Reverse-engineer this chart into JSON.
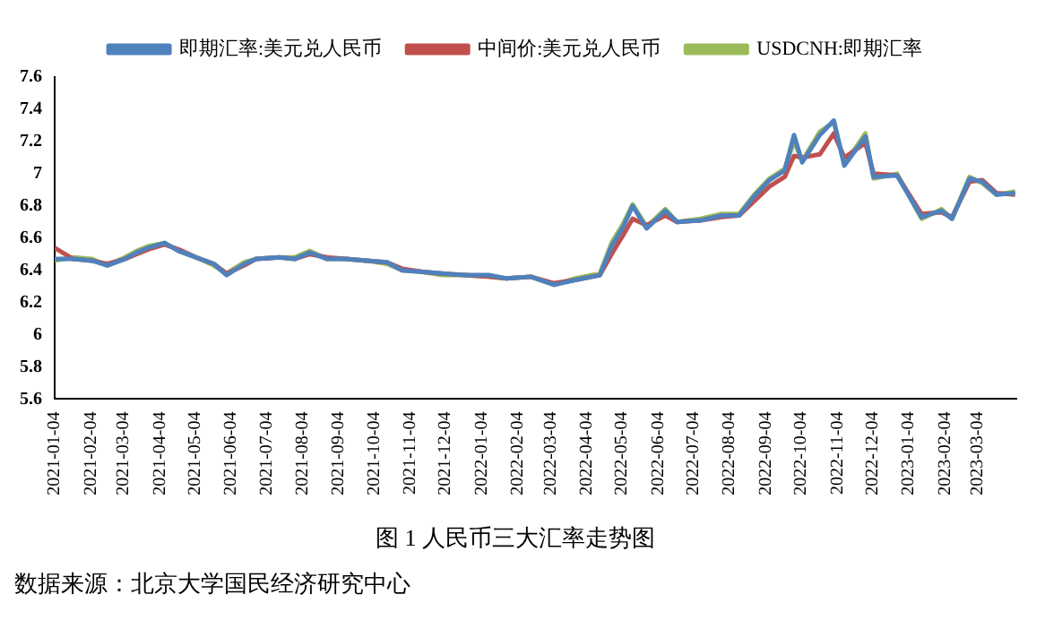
{
  "chart_data": {
    "type": "line",
    "title": "图 1 人民币三大汇率走势图",
    "annotations": [
      "数据来源：北京大学国民经济研究中心"
    ],
    "x": [
      "2021-01-04",
      "2021-01-20",
      "2021-02-05",
      "2021-02-18",
      "2021-03-05",
      "2021-03-15",
      "2021-03-25",
      "2021-04-08",
      "2021-04-20",
      "2021-05-05",
      "2021-05-20",
      "2021-05-31",
      "2021-06-15",
      "2021-06-25",
      "2021-07-15",
      "2021-07-28",
      "2021-08-10",
      "2021-08-25",
      "2021-09-10",
      "2021-09-28",
      "2021-10-15",
      "2021-10-28",
      "2021-11-15",
      "2021-12-01",
      "2021-12-20",
      "2022-01-10",
      "2022-01-25",
      "2022-02-15",
      "2022-03-07",
      "2022-03-25",
      "2022-04-15",
      "2022-04-25",
      "2022-05-05",
      "2022-05-13",
      "2022-05-25",
      "2022-06-10",
      "2022-06-20",
      "2022-07-10",
      "2022-07-28",
      "2022-08-12",
      "2022-08-25",
      "2022-09-07",
      "2022-09-20",
      "2022-09-28",
      "2022-10-05",
      "2022-10-20",
      "2022-11-01",
      "2022-11-10",
      "2022-11-28",
      "2022-12-05",
      "2022-12-25",
      "2023-01-15",
      "2023-02-01",
      "2023-02-10",
      "2023-02-25",
      "2023-03-08",
      "2023-03-20",
      "2023-04-05"
    ],
    "series": [
      {
        "name": "即期汇率:美元兑人民币",
        "color": "#4f81bd",
        "values": [
          6.47,
          6.47,
          6.46,
          6.43,
          6.47,
          6.51,
          6.54,
          6.57,
          6.52,
          6.48,
          6.44,
          6.37,
          6.44,
          6.47,
          6.48,
          6.47,
          6.51,
          6.47,
          6.47,
          6.46,
          6.45,
          6.4,
          6.39,
          6.38,
          6.37,
          6.37,
          6.35,
          6.36,
          6.31,
          6.34,
          6.37,
          6.55,
          6.67,
          6.8,
          6.66,
          6.77,
          6.7,
          6.71,
          6.74,
          6.74,
          6.86,
          6.96,
          7.02,
          7.24,
          7.07,
          7.24,
          7.33,
          7.05,
          7.23,
          6.98,
          6.99,
          6.73,
          6.77,
          6.72,
          6.97,
          6.95,
          6.87,
          6.88
        ]
      },
      {
        "name": "中间价:美元兑人民币",
        "color": "#c0504d",
        "values": [
          6.54,
          6.47,
          6.46,
          6.44,
          6.47,
          6.5,
          6.53,
          6.56,
          6.53,
          6.48,
          6.44,
          6.38,
          6.43,
          6.47,
          6.48,
          6.47,
          6.5,
          6.48,
          6.47,
          6.46,
          6.45,
          6.41,
          6.39,
          6.38,
          6.37,
          6.36,
          6.35,
          6.36,
          6.32,
          6.34,
          6.37,
          6.5,
          6.62,
          6.72,
          6.68,
          6.74,
          6.7,
          6.71,
          6.73,
          6.74,
          6.83,
          6.92,
          6.98,
          7.11,
          7.1,
          7.12,
          7.25,
          7.1,
          7.19,
          7.0,
          6.99,
          6.75,
          6.76,
          6.73,
          6.95,
          6.96,
          6.88,
          6.87
        ]
      },
      {
        "name": "USDCNH:即期汇率",
        "color": "#9bbb59",
        "values": [
          6.46,
          6.48,
          6.47,
          6.43,
          6.48,
          6.52,
          6.55,
          6.57,
          6.52,
          6.48,
          6.43,
          6.38,
          6.45,
          6.47,
          6.48,
          6.48,
          6.52,
          6.47,
          6.47,
          6.46,
          6.44,
          6.4,
          6.39,
          6.37,
          6.37,
          6.36,
          6.35,
          6.36,
          6.31,
          6.35,
          6.38,
          6.57,
          6.69,
          6.81,
          6.67,
          6.78,
          6.7,
          6.72,
          6.75,
          6.75,
          6.87,
          6.97,
          7.03,
          7.2,
          7.08,
          7.26,
          7.32,
          7.06,
          7.25,
          6.97,
          7.0,
          6.72,
          6.78,
          6.72,
          6.98,
          6.94,
          6.87,
          6.89
        ]
      }
    ],
    "xlim": [
      "2021-01-04",
      "2023-04-06"
    ],
    "xticks": [
      "2021-01-04",
      "2021-02-04",
      "2021-03-04",
      "2021-04-04",
      "2021-05-04",
      "2021-06-04",
      "2021-07-04",
      "2021-08-04",
      "2021-09-04",
      "2021-10-04",
      "2021-11-04",
      "2021-12-04",
      "2022-01-04",
      "2022-02-04",
      "2022-03-04",
      "2022-04-04",
      "2022-05-04",
      "2022-06-04",
      "2022-07-04",
      "2022-08-04",
      "2022-09-04",
      "2022-10-04",
      "2022-11-04",
      "2022-12-04",
      "2023-01-04",
      "2023-02-04",
      "2023-03-04"
    ],
    "ylim": [
      5.6,
      7.6
    ],
    "yticks": [
      5.6,
      5.8,
      6,
      6.2,
      6.4,
      6.6,
      6.8,
      7,
      7.2,
      7.4,
      7.6
    ],
    "grid": false,
    "legend": "top",
    "marker": "none",
    "line_style": "solid"
  }
}
